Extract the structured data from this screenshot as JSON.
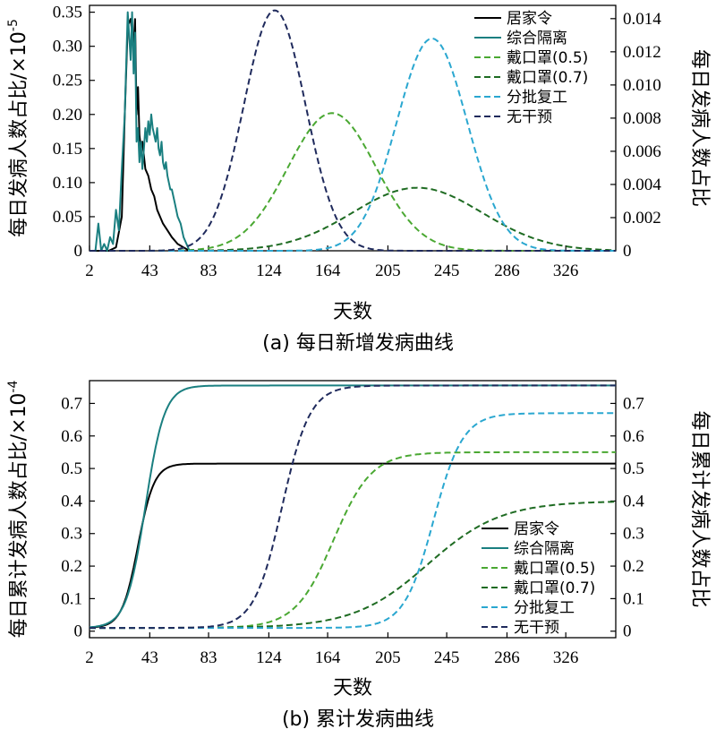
{
  "chart_data": [
    {
      "type": "line",
      "caption": "(a) 每日新增发病曲线",
      "xlabel": "天数",
      "ylabel_left": "每日发病人数占比/×10",
      "ylabel_left_exp": "-5",
      "ylabel_right": "每日发病人数占比",
      "xticks": [
        2,
        43,
        83,
        124,
        164,
        205,
        245,
        286,
        326
      ],
      "xlim": [
        2,
        360
      ],
      "ylim_left": [
        0,
        0.36
      ],
      "yticks_left": [
        "0",
        "0.05",
        "0.10",
        "0.15",
        "0.20",
        "0.25",
        "0.30",
        "0.35"
      ],
      "yticks_left_values": [
        0,
        0.05,
        0.1,
        0.15,
        0.2,
        0.25,
        0.3,
        0.35
      ],
      "ylim_right": [
        0,
        0.0148
      ],
      "yticks_right": [
        "0",
        "0.002",
        "0.004",
        "0.006",
        "0.008",
        "0.010",
        "0.012",
        "0.014"
      ],
      "yticks_right_values": [
        0,
        0.002,
        0.004,
        0.006,
        0.008,
        0.01,
        0.012,
        0.014
      ],
      "legend_position": "top-right",
      "series": [
        {
          "name": "居家令",
          "color": "#000000",
          "dash": false,
          "axis": "left",
          "x": [
            2,
            15,
            20,
            24,
            26,
            28,
            30,
            32,
            33,
            34,
            35,
            36,
            37,
            38,
            40,
            42,
            44,
            46,
            48,
            50,
            52,
            55,
            58,
            62,
            66,
            70
          ],
          "y": [
            0,
            0,
            0.005,
            0.05,
            0.2,
            0.33,
            0.34,
            0.3,
            0.34,
            0.2,
            0.24,
            0.17,
            0.15,
            0.16,
            0.12,
            0.11,
            0.09,
            0.08,
            0.06,
            0.05,
            0.04,
            0.03,
            0.02,
            0.01,
            0.005,
            0
          ]
        },
        {
          "name": "综合隔离",
          "color": "#1a7f80",
          "dash": false,
          "axis": "left",
          "x": [
            2,
            6,
            8,
            10,
            12,
            14,
            16,
            18,
            20,
            22,
            24,
            26,
            28,
            30,
            31,
            32,
            33,
            34,
            35,
            36,
            37,
            38,
            39,
            40,
            41,
            42,
            43,
            44,
            45,
            46,
            47,
            48,
            49,
            50,
            51,
            52,
            53,
            54,
            55,
            56,
            57,
            58,
            60,
            62,
            64,
            66,
            68,
            70
          ],
          "y": [
            0,
            0,
            0.04,
            0,
            0.01,
            0,
            0.02,
            0.01,
            0.06,
            0.03,
            0.12,
            0.2,
            0.35,
            0.28,
            0.35,
            0.26,
            0.32,
            0.16,
            0.18,
            0.13,
            0.16,
            0.12,
            0.15,
            0.18,
            0.16,
            0.19,
            0.17,
            0.2,
            0.18,
            0.17,
            0.16,
            0.18,
            0.15,
            0.14,
            0.16,
            0.13,
            0.12,
            0.13,
            0.11,
            0.1,
            0.09,
            0.09,
            0.07,
            0.05,
            0.04,
            0.02,
            0.01,
            0
          ]
        },
        {
          "name": "戴口罩(0.5)",
          "color": "#4aa832",
          "dash": true,
          "axis": "right",
          "peak_x": 167,
          "peak_y": 0.0083,
          "width": 30
        },
        {
          "name": "戴口罩(0.7)",
          "color": "#1e6b22",
          "dash": true,
          "axis": "right",
          "peak_x": 225,
          "peak_y": 0.0038,
          "width": 44
        },
        {
          "name": "分批复工",
          "color": "#2aa7d0",
          "dash": true,
          "axis": "right",
          "peak_x": 235,
          "peak_y": 0.0128,
          "width": 24
        },
        {
          "name": "无干预",
          "color": "#1f2a5c",
          "dash": true,
          "axis": "right",
          "peak_x": 128,
          "peak_y": 0.0145,
          "width": 21
        }
      ]
    },
    {
      "type": "line",
      "caption": "(b) 累计发病曲线",
      "xlabel": "天数",
      "ylabel_left": "每日累计发病人数占比/×10",
      "ylabel_left_exp": "-4",
      "ylabel_right": "每日累计发病人数占比",
      "xticks": [
        2,
        43,
        83,
        124,
        164,
        205,
        245,
        286,
        326
      ],
      "xlim": [
        2,
        360
      ],
      "ylim_left": [
        -0.02,
        0.77
      ],
      "yticks_left": [
        "0",
        "0.1",
        "0.2",
        "0.3",
        "0.4",
        "0.5",
        "0.6",
        "0.7"
      ],
      "yticks_left_values": [
        0,
        0.1,
        0.2,
        0.3,
        0.4,
        0.5,
        0.6,
        0.7
      ],
      "ylim_right": [
        -0.02,
        0.77
      ],
      "yticks_right": [
        "0",
        "0.1",
        "0.2",
        "0.3",
        "0.4",
        "0.5",
        "0.6",
        "0.7"
      ],
      "yticks_right_values": [
        0,
        0.1,
        0.2,
        0.3,
        0.4,
        0.5,
        0.6,
        0.7
      ],
      "legend_position": "lower-right",
      "series": [
        {
          "name": "居家令",
          "color": "#000000",
          "dash": false,
          "axis": "left",
          "start": 0.01,
          "final": 0.515,
          "mid": 35,
          "width": 5.5
        },
        {
          "name": "综合隔离",
          "color": "#1a7f80",
          "dash": false,
          "axis": "left",
          "start": 0.01,
          "final": 0.755,
          "mid": 40,
          "width": 6.5
        },
        {
          "name": "戴口罩(0.5)",
          "color": "#4aa832",
          "dash": true,
          "axis": "right",
          "start": 0.01,
          "final": 0.55,
          "mid": 168,
          "width": 13
        },
        {
          "name": "戴口罩(0.7)",
          "color": "#1e6b22",
          "dash": true,
          "axis": "right",
          "start": 0.01,
          "final": 0.4,
          "mid": 232,
          "width": 25
        },
        {
          "name": "分批复工",
          "color": "#2aa7d0",
          "dash": true,
          "axis": "right",
          "start": 0.01,
          "final": 0.67,
          "mid": 236,
          "width": 10
        },
        {
          "name": "无干预",
          "color": "#1f2a5c",
          "dash": true,
          "axis": "right",
          "start": 0.01,
          "final": 0.755,
          "mid": 133,
          "width": 9.5
        }
      ]
    }
  ]
}
